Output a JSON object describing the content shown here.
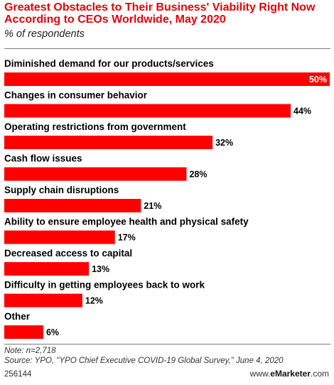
{
  "header": {
    "title": "Greatest Obstacles to Their Business' Viability Right Now According to CEOs Worldwide, May 2020",
    "subtitle": "% of respondents"
  },
  "chart_data": {
    "type": "bar",
    "orientation": "horizontal",
    "categories": [
      "Diminished demand for our products/services",
      "Changes in consumer behavior",
      "Operating restrictions from government",
      "Cash flow issues",
      "Supply chain disruptions",
      "Ability to ensure employee health and physical safety",
      "Decreased access to capital",
      "Difficulty in getting employees back to work",
      "Other"
    ],
    "values": [
      50,
      44,
      32,
      28,
      21,
      17,
      13,
      12,
      6
    ],
    "value_labels": [
      "50%",
      "44%",
      "32%",
      "28%",
      "21%",
      "17%",
      "13%",
      "12%",
      "6%"
    ],
    "xlim": [
      0,
      50
    ],
    "bar_color": "#ff0000",
    "grid": false
  },
  "footer": {
    "note": "Note: n=2,718",
    "source": "Source: YPO, \"YPO Chief Executive COVID-19 Global Survey,\" June 4, 2020",
    "id": "256144",
    "brand_prefix": "www.",
    "brand_name": "eMarketer",
    "brand_suffix": ".com"
  }
}
